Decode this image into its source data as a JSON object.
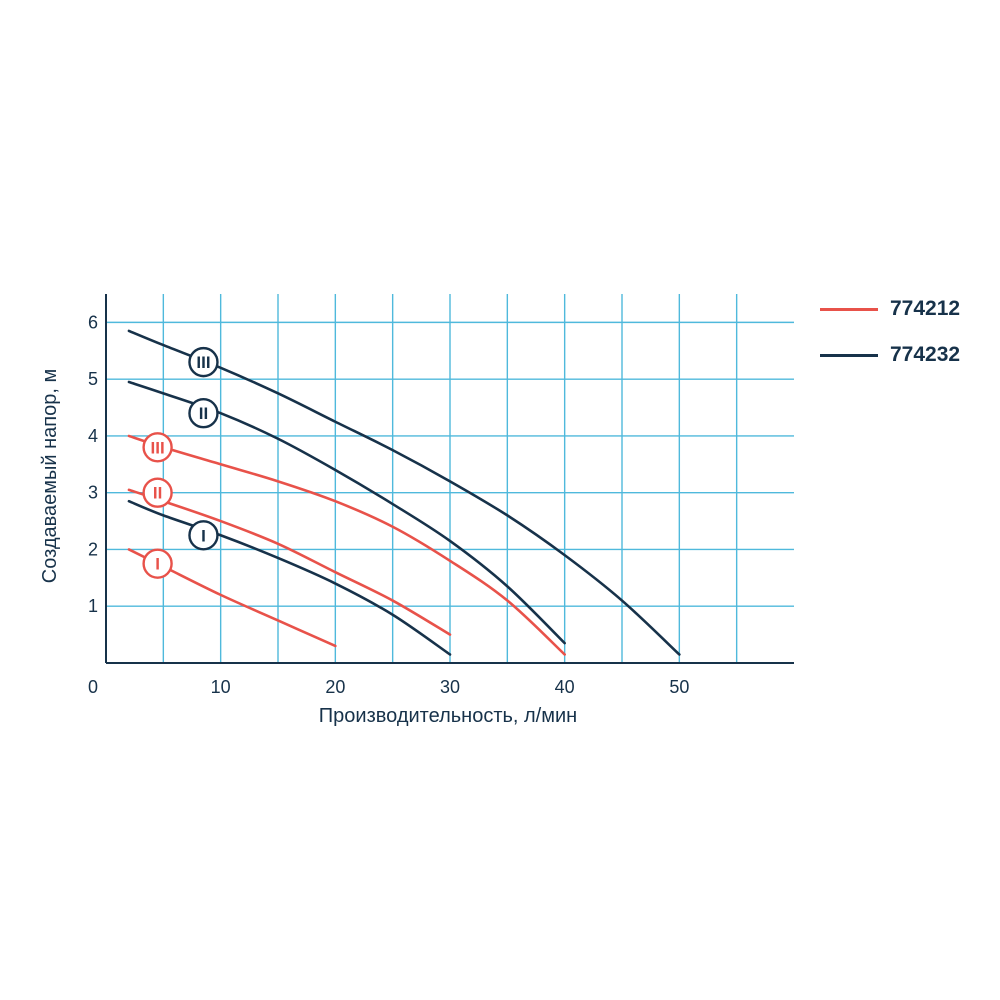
{
  "chart_data": {
    "type": "line",
    "xlabel": "Производительность, л/мин",
    "ylabel": "Создаваемый напор, м",
    "xlim": [
      0,
      60
    ],
    "ylim": [
      0,
      6.5
    ],
    "x_ticks": [
      0,
      10,
      20,
      30,
      40,
      50
    ],
    "y_ticks": [
      1,
      2,
      3,
      4,
      5,
      6
    ],
    "grid": true,
    "legend_position": "top-right",
    "colors": {
      "774212": "#e8524a",
      "774232": "#17324a",
      "grid": "#4fb9dc",
      "axis": "#17324a"
    },
    "series": [
      {
        "name": "774212",
        "color": "#e8524a",
        "curves": [
          {
            "label": "I",
            "x": [
              2,
              5,
              10,
              15,
              20
            ],
            "y": [
              2.0,
              1.7,
              1.2,
              0.75,
              0.3
            ]
          },
          {
            "label": "II",
            "x": [
              2,
              5,
              10,
              15,
              20,
              25,
              30
            ],
            "y": [
              3.05,
              2.85,
              2.5,
              2.1,
              1.6,
              1.1,
              0.5
            ]
          },
          {
            "label": "III",
            "x": [
              2,
              5,
              10,
              15,
              20,
              25,
              30,
              35,
              40
            ],
            "y": [
              4.0,
              3.8,
              3.5,
              3.2,
              2.85,
              2.4,
              1.8,
              1.1,
              0.15
            ]
          }
        ]
      },
      {
        "name": "774232",
        "color": "#17324a",
        "curves": [
          {
            "label": "I",
            "x": [
              2,
              5,
              10,
              15,
              20,
              25,
              30
            ],
            "y": [
              2.85,
              2.6,
              2.25,
              1.85,
              1.4,
              0.85,
              0.15
            ]
          },
          {
            "label": "II",
            "x": [
              2,
              5,
              10,
              15,
              20,
              25,
              30,
              35,
              40
            ],
            "y": [
              4.95,
              4.75,
              4.4,
              3.95,
              3.4,
              2.8,
              2.15,
              1.35,
              0.35
            ]
          },
          {
            "label": "III",
            "x": [
              2,
              5,
              10,
              15,
              20,
              25,
              30,
              35,
              40,
              45,
              50
            ],
            "y": [
              5.85,
              5.6,
              5.2,
              4.75,
              4.25,
              3.75,
              3.2,
              2.6,
              1.9,
              1.1,
              0.15
            ]
          }
        ]
      }
    ],
    "curve_markers": [
      {
        "series": "774212",
        "label": "I",
        "x": 4.5,
        "y": 1.75
      },
      {
        "series": "774212",
        "label": "II",
        "x": 4.5,
        "y": 3.0
      },
      {
        "series": "774212",
        "label": "III",
        "x": 4.5,
        "y": 3.8
      },
      {
        "series": "774232",
        "label": "I",
        "x": 8.5,
        "y": 2.25
      },
      {
        "series": "774232",
        "label": "II",
        "x": 8.5,
        "y": 4.4
      },
      {
        "series": "774232",
        "label": "III",
        "x": 8.5,
        "y": 5.3
      }
    ]
  }
}
